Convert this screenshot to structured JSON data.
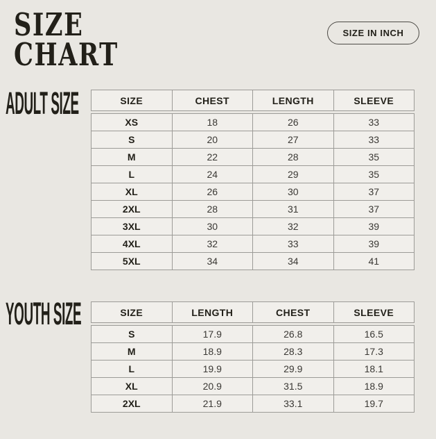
{
  "page": {
    "title_line1": "SIZE",
    "title_line2": "CHART",
    "unit_button_label": "SIZE IN INCH"
  },
  "adult": {
    "label": "ADULT SIZE",
    "headers": [
      "SIZE",
      "CHEST",
      "LENGTH",
      "SLEEVE"
    ],
    "rows": [
      [
        "XS",
        "18",
        "26",
        "33"
      ],
      [
        "S",
        "20",
        "27",
        "33"
      ],
      [
        "M",
        "22",
        "28",
        "35"
      ],
      [
        "L",
        "24",
        "29",
        "35"
      ],
      [
        "XL",
        "26",
        "30",
        "37"
      ],
      [
        "2XL",
        "28",
        "31",
        "37"
      ],
      [
        "3XL",
        "30",
        "32",
        "39"
      ],
      [
        "4XL",
        "32",
        "33",
        "39"
      ],
      [
        "5XL",
        "34",
        "34",
        "41"
      ]
    ]
  },
  "youth": {
    "label": "YOUTH SIZE",
    "headers": [
      "SIZE",
      "LENGTH",
      "CHEST",
      "SLEEVE"
    ],
    "rows": [
      [
        "S",
        "17.9",
        "26.8",
        "16.5"
      ],
      [
        "M",
        "18.9",
        "28.3",
        "17.3"
      ],
      [
        "L",
        "19.9",
        "29.9",
        "18.1"
      ],
      [
        "XL",
        "20.9",
        "31.5",
        "18.9"
      ],
      [
        "2XL",
        "21.9",
        "33.1",
        "19.7"
      ]
    ]
  },
  "colors": {
    "bg": "#e9e7e2",
    "cell": "#f1efeb",
    "border": "#9c9b97",
    "ink": "#222019",
    "num": "#3a3834",
    "btnborder": "#4c4a45"
  }
}
